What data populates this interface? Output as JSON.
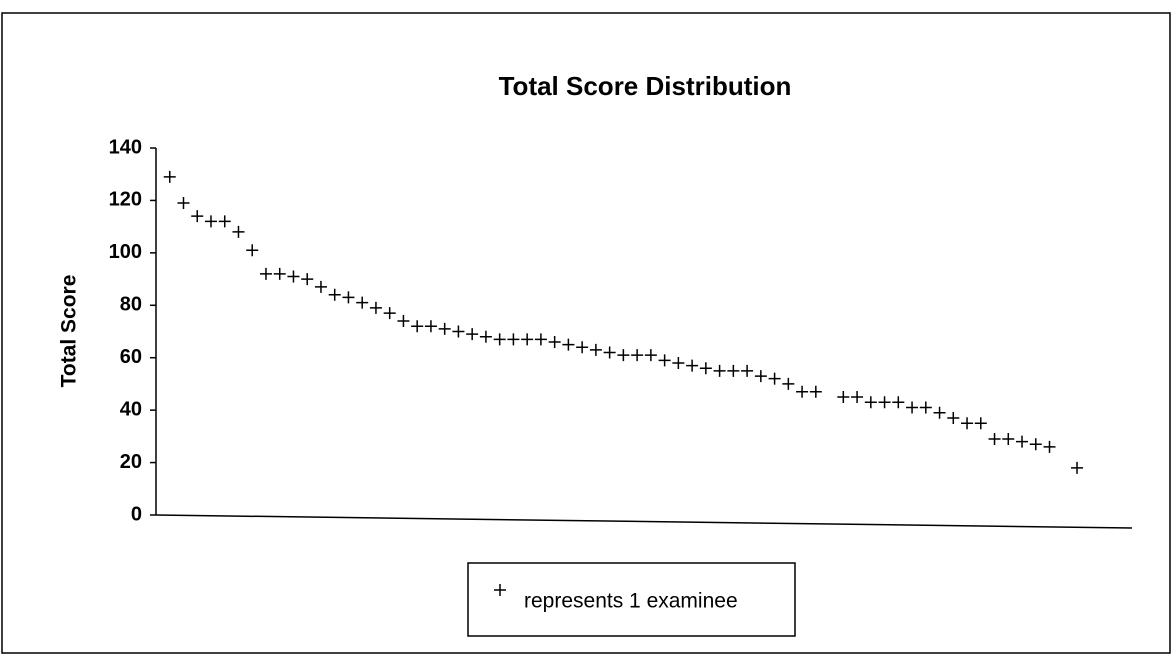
{
  "chart_data": {
    "type": "scatter",
    "title": "Total Score Distribution",
    "y_label": "Total Score",
    "legend_text": "represents 1 examinee",
    "color": "#000000",
    "x": [
      1,
      2,
      3,
      4,
      5,
      6,
      7,
      8,
      9,
      10,
      11,
      12,
      13,
      14,
      15,
      16,
      17,
      18,
      19,
      20,
      21,
      22,
      23,
      24,
      25,
      26,
      27,
      28,
      29,
      30,
      31,
      32,
      33,
      34,
      35,
      36,
      37,
      38,
      39,
      40,
      41,
      42,
      43,
      44,
      45,
      46,
      47,
      48,
      50,
      51,
      52,
      53,
      54,
      55,
      56,
      57,
      58,
      59,
      60,
      61,
      62,
      63,
      64,
      65,
      67
    ],
    "values": [
      129,
      119,
      114,
      112,
      112,
      108,
      101,
      92,
      92,
      91,
      90,
      87,
      84,
      83,
      81,
      79,
      77,
      74,
      72,
      72,
      71,
      70,
      69,
      68,
      67,
      67,
      67,
      67,
      66,
      65,
      64,
      63,
      62,
      61,
      61,
      61,
      59,
      58,
      57,
      56,
      55,
      55,
      55,
      53,
      52,
      50,
      47,
      47,
      45,
      45,
      43,
      43,
      43,
      41,
      41,
      39,
      37,
      35,
      35,
      29,
      29,
      28,
      27,
      26,
      18
    ],
    "xlim": [
      0,
      71
    ],
    "ylim": [
      0,
      140
    ],
    "yticks": [
      0,
      20,
      40,
      60,
      80,
      100,
      120,
      140
    ]
  }
}
